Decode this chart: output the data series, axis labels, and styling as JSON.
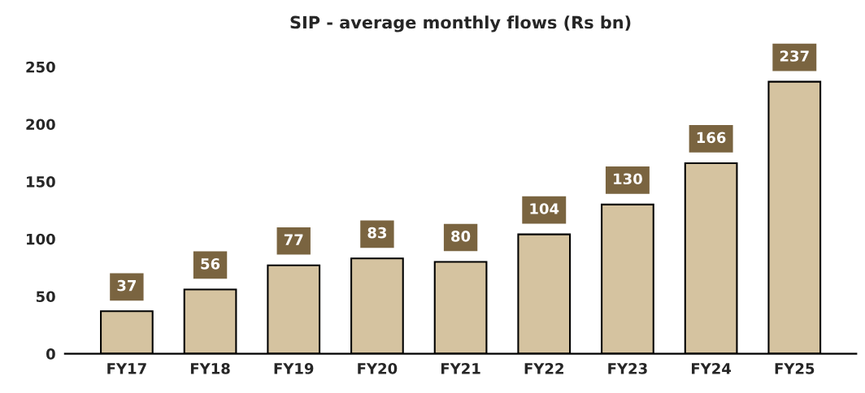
{
  "chart_data": {
    "type": "bar",
    "title": "SIP - average monthly flows (Rs bn)",
    "categories": [
      "FY17",
      "FY18",
      "FY19",
      "FY20",
      "FY21",
      "FY22",
      "FY23",
      "FY24",
      "FY25"
    ],
    "values": [
      37,
      56,
      77,
      83,
      80,
      104,
      130,
      166,
      237
    ],
    "color": "#d5c3a0",
    "ylim": [
      0,
      250
    ],
    "yticks": [
      0,
      50,
      100,
      150,
      200,
      250
    ],
    "grid": false,
    "data_labels": true
  }
}
